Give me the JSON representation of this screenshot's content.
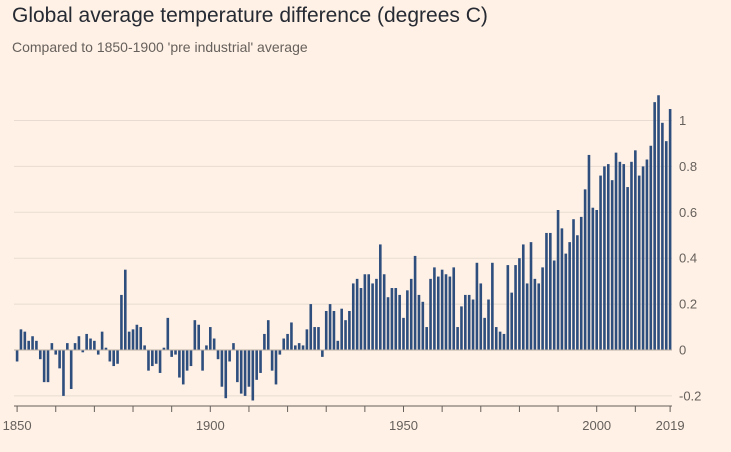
{
  "title": "Global average temperature difference (degrees C)",
  "subtitle": "Compared to 1850-1900 'pre industrial' average",
  "colors": {
    "background": "#FFF1E5",
    "bar": "#2E4E7E",
    "grid": "#E8DCD2",
    "zero_line": "#B8ADA4",
    "axis_tick": "#66605C",
    "text": "#33302E"
  },
  "chart_data": {
    "type": "bar",
    "x_start": 1850,
    "x_end": 2019,
    "xticks": [
      {
        "year": 1850,
        "label": "1850"
      },
      {
        "year": 1900,
        "label": "1900"
      },
      {
        "year": 1950,
        "label": "1950"
      },
      {
        "year": 2000,
        "label": "2000"
      },
      {
        "year": 2019,
        "label": "2019"
      }
    ],
    "xtick_marks": [
      1850,
      1860,
      1870,
      1880,
      1890,
      1900,
      1910,
      1920,
      1930,
      1940,
      1950,
      1960,
      1970,
      1980,
      1990,
      2000,
      2010,
      2019
    ],
    "yticks": [
      {
        "value": 1,
        "label": "1"
      },
      {
        "value": 0.8,
        "label": "0.8"
      },
      {
        "value": 0.6,
        "label": "0.6"
      },
      {
        "value": 0.4,
        "label": "0.4"
      },
      {
        "value": 0.2,
        "label": "0.2"
      },
      {
        "value": 0,
        "label": "0"
      },
      {
        "value": -0.2,
        "label": "-0.2"
      }
    ],
    "ylim": [
      -0.22,
      1.12
    ],
    "grid": true,
    "years": [
      1850,
      1851,
      1852,
      1853,
      1854,
      1855,
      1856,
      1857,
      1858,
      1859,
      1860,
      1861,
      1862,
      1863,
      1864,
      1865,
      1866,
      1867,
      1868,
      1869,
      1870,
      1871,
      1872,
      1873,
      1874,
      1875,
      1876,
      1877,
      1878,
      1879,
      1880,
      1881,
      1882,
      1883,
      1884,
      1885,
      1886,
      1887,
      1888,
      1889,
      1890,
      1891,
      1892,
      1893,
      1894,
      1895,
      1896,
      1897,
      1898,
      1899,
      1900,
      1901,
      1902,
      1903,
      1904,
      1905,
      1906,
      1907,
      1908,
      1909,
      1910,
      1911,
      1912,
      1913,
      1914,
      1915,
      1916,
      1917,
      1918,
      1919,
      1920,
      1921,
      1922,
      1923,
      1924,
      1925,
      1926,
      1927,
      1928,
      1929,
      1930,
      1931,
      1932,
      1933,
      1934,
      1935,
      1936,
      1937,
      1938,
      1939,
      1940,
      1941,
      1942,
      1943,
      1944,
      1945,
      1946,
      1947,
      1948,
      1949,
      1950,
      1951,
      1952,
      1953,
      1954,
      1955,
      1956,
      1957,
      1958,
      1959,
      1960,
      1961,
      1962,
      1963,
      1964,
      1965,
      1966,
      1967,
      1968,
      1969,
      1970,
      1971,
      1972,
      1973,
      1974,
      1975,
      1976,
      1977,
      1978,
      1979,
      1980,
      1981,
      1982,
      1983,
      1984,
      1985,
      1986,
      1987,
      1988,
      1989,
      1990,
      1991,
      1992,
      1993,
      1994,
      1995,
      1996,
      1997,
      1998,
      1999,
      2000,
      2001,
      2002,
      2003,
      2004,
      2005,
      2006,
      2007,
      2008,
      2009,
      2010,
      2011,
      2012,
      2013,
      2014,
      2015,
      2016,
      2017,
      2018,
      2019
    ],
    "values": [
      -0.05,
      0.09,
      0.08,
      0.04,
      0.06,
      0.04,
      -0.04,
      -0.14,
      -0.14,
      0.03,
      -0.02,
      -0.08,
      -0.2,
      0.03,
      -0.17,
      0.03,
      0.06,
      -0.01,
      0.07,
      0.05,
      0.04,
      -0.02,
      0.08,
      0.01,
      -0.05,
      -0.07,
      -0.06,
      0.24,
      0.35,
      0.08,
      0.09,
      0.11,
      0.1,
      0.02,
      -0.09,
      -0.07,
      -0.06,
      -0.1,
      0.01,
      0.14,
      -0.03,
      -0.02,
      -0.12,
      -0.15,
      -0.09,
      -0.07,
      0.13,
      0.11,
      -0.09,
      0.02,
      0.1,
      0.05,
      -0.04,
      -0.16,
      -0.21,
      -0.05,
      0.03,
      -0.14,
      -0.19,
      -0.2,
      -0.16,
      -0.22,
      -0.13,
      -0.1,
      0.07,
      0.13,
      -0.09,
      -0.15,
      -0.02,
      0.05,
      0.07,
      0.12,
      0.02,
      0.03,
      0.02,
      0.09,
      0.2,
      0.1,
      0.1,
      -0.03,
      0.17,
      0.2,
      0.17,
      0.04,
      0.18,
      0.13,
      0.17,
      0.29,
      0.31,
      0.27,
      0.33,
      0.33,
      0.29,
      0.31,
      0.46,
      0.33,
      0.23,
      0.27,
      0.27,
      0.24,
      0.14,
      0.26,
      0.31,
      0.41,
      0.24,
      0.21,
      0.1,
      0.31,
      0.36,
      0.32,
      0.35,
      0.33,
      0.32,
      0.36,
      0.1,
      0.19,
      0.24,
      0.24,
      0.22,
      0.38,
      0.29,
      0.14,
      0.22,
      0.38,
      0.1,
      0.08,
      0.07,
      0.37,
      0.25,
      0.37,
      0.4,
      0.46,
      0.29,
      0.47,
      0.31,
      0.29,
      0.36,
      0.51,
      0.51,
      0.39,
      0.61,
      0.53,
      0.42,
      0.47,
      0.57,
      0.5,
      0.58,
      0.7,
      0.85,
      0.62,
      0.61,
      0.76,
      0.8,
      0.81,
      0.74,
      0.86,
      0.82,
      0.81,
      0.71,
      0.82,
      0.87,
      0.76,
      0.8,
      0.83,
      0.89,
      1.08,
      1.11,
      0.99,
      0.91,
      1.05
    ]
  }
}
